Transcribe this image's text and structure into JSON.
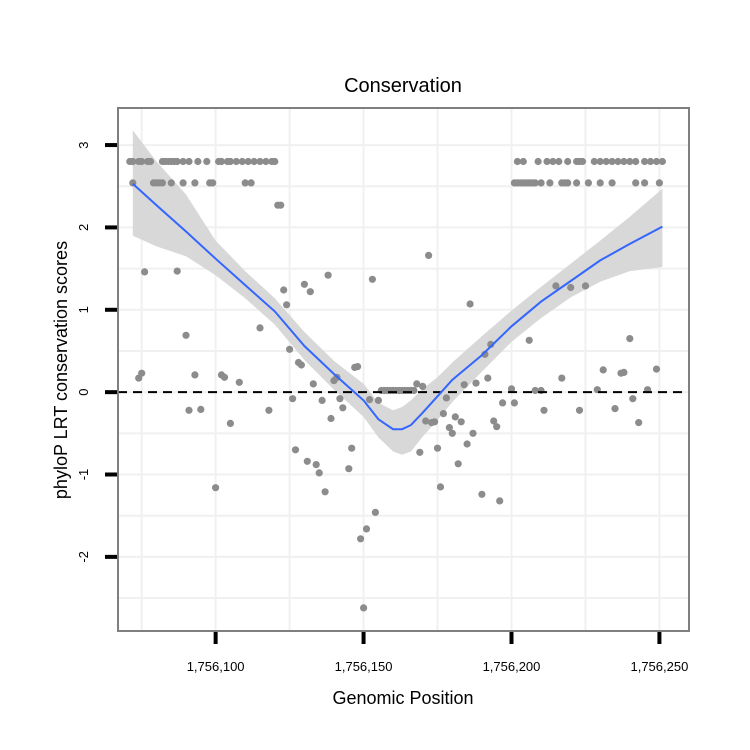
{
  "chart_data": {
    "type": "scatter",
    "title": "Conservation",
    "xlabel": "Genomic Position",
    "ylabel": "phyloP LRT conservation scores",
    "xlim": [
      1756067,
      1756260
    ],
    "ylim": [
      -2.9,
      3.45
    ],
    "x_ticks": [
      1756100,
      1756150,
      1756200,
      1756250
    ],
    "x_tick_labels": [
      "1,756,100",
      "1,756,150",
      "1,756,200",
      "1,756,250"
    ],
    "y_ticks": [
      -2,
      -1,
      0,
      1,
      2,
      3
    ],
    "y_tick_labels": [
      "-2",
      "-1",
      "0",
      "1",
      "2",
      "3"
    ],
    "reference_line": {
      "y": 0,
      "style": "dashed"
    },
    "colors": {
      "points": "#8c8c8c",
      "smooth": "#3366ff",
      "band": "#d4d4d4",
      "panel_border": "#7f7f7f",
      "grid": "#f0f0f0",
      "reference": "#000000"
    },
    "series": [
      {
        "name": "scores",
        "points": [
          [
            1756071,
            2.8
          ],
          [
            1756072,
            2.8
          ],
          [
            1756074,
            2.8
          ],
          [
            1756075,
            2.8
          ],
          [
            1756077,
            2.8
          ],
          [
            1756078,
            2.8
          ],
          [
            1756082,
            2.8
          ],
          [
            1756083,
            2.8
          ],
          [
            1756084,
            2.8
          ],
          [
            1756085,
            2.8
          ],
          [
            1756086,
            2.8
          ],
          [
            1756087,
            2.8
          ],
          [
            1756089,
            2.8
          ],
          [
            1756091,
            2.8
          ],
          [
            1756094,
            2.8
          ],
          [
            1756097,
            2.8
          ],
          [
            1756101,
            2.8
          ],
          [
            1756102,
            2.8
          ],
          [
            1756104,
            2.8
          ],
          [
            1756105,
            2.8
          ],
          [
            1756107,
            2.8
          ],
          [
            1756109,
            2.8
          ],
          [
            1756111,
            2.8
          ],
          [
            1756113,
            2.8
          ],
          [
            1756115,
            2.8
          ],
          [
            1756117,
            2.8
          ],
          [
            1756119,
            2.8
          ],
          [
            1756120,
            2.8
          ],
          [
            1756072,
            2.54
          ],
          [
            1756079,
            2.54
          ],
          [
            1756080,
            2.54
          ],
          [
            1756081,
            2.54
          ],
          [
            1756082,
            2.54
          ],
          [
            1756085,
            2.54
          ],
          [
            1756089,
            2.54
          ],
          [
            1756093,
            2.54
          ],
          [
            1756098,
            2.54
          ],
          [
            1756099,
            2.54
          ],
          [
            1756110,
            2.54
          ],
          [
            1756112,
            2.54
          ],
          [
            1756121,
            2.27
          ],
          [
            1756122,
            2.27
          ],
          [
            1756201,
            2.54
          ],
          [
            1756202,
            2.54
          ],
          [
            1756203,
            2.54
          ],
          [
            1756204,
            2.54
          ],
          [
            1756205,
            2.54
          ],
          [
            1756206,
            2.54
          ],
          [
            1756207,
            2.54
          ],
          [
            1756208,
            2.54
          ],
          [
            1756210,
            2.54
          ],
          [
            1756213,
            2.54
          ],
          [
            1756217,
            2.54
          ],
          [
            1756218,
            2.54
          ],
          [
            1756219,
            2.54
          ],
          [
            1756222,
            2.54
          ],
          [
            1756226,
            2.54
          ],
          [
            1756230,
            2.54
          ],
          [
            1756234,
            2.54
          ],
          [
            1756242,
            2.54
          ],
          [
            1756245,
            2.54
          ],
          [
            1756250,
            2.54
          ],
          [
            1756202,
            2.8
          ],
          [
            1756204,
            2.8
          ],
          [
            1756209,
            2.8
          ],
          [
            1756212,
            2.8
          ],
          [
            1756214,
            2.8
          ],
          [
            1756216,
            2.8
          ],
          [
            1756219,
            2.8
          ],
          [
            1756222,
            2.8
          ],
          [
            1756223,
            2.8
          ],
          [
            1756224,
            2.8
          ],
          [
            1756228,
            2.8
          ],
          [
            1756230,
            2.8
          ],
          [
            1756232,
            2.8
          ],
          [
            1756234,
            2.8
          ],
          [
            1756236,
            2.8
          ],
          [
            1756238,
            2.8
          ],
          [
            1756240,
            2.8
          ],
          [
            1756242,
            2.8
          ],
          [
            1756245,
            2.8
          ],
          [
            1756247,
            2.8
          ],
          [
            1756249,
            2.8
          ],
          [
            1756251,
            2.8
          ],
          [
            1756075,
            0.23
          ],
          [
            1756074,
            0.17
          ],
          [
            1756076,
            1.46
          ],
          [
            1756087,
            1.47
          ],
          [
            1756090,
            0.69
          ],
          [
            1756091,
            -0.22
          ],
          [
            1756093,
            0.21
          ],
          [
            1756095,
            -0.21
          ],
          [
            1756100,
            -1.16
          ],
          [
            1756102,
            0.21
          ],
          [
            1756103,
            0.18
          ],
          [
            1756105,
            -0.38
          ],
          [
            1756108,
            0.12
          ],
          [
            1756115,
            0.78
          ],
          [
            1756118,
            -0.22
          ],
          [
            1756123,
            1.24
          ],
          [
            1756124,
            1.06
          ],
          [
            1756125,
            0.52
          ],
          [
            1756126,
            -0.08
          ],
          [
            1756127,
            -0.7
          ],
          [
            1756128,
            0.36
          ],
          [
            1756129,
            0.33
          ],
          [
            1756130,
            1.31
          ],
          [
            1756131,
            -0.84
          ],
          [
            1756132,
            1.22
          ],
          [
            1756133,
            0.1
          ],
          [
            1756134,
            -0.88
          ],
          [
            1756135,
            -0.98
          ],
          [
            1756136,
            -0.1
          ],
          [
            1756137,
            -1.21
          ],
          [
            1756138,
            1.42
          ],
          [
            1756139,
            -0.32
          ],
          [
            1756140,
            0.14
          ],
          [
            1756141,
            0.18
          ],
          [
            1756142,
            -0.08
          ],
          [
            1756143,
            -0.19
          ],
          [
            1756145,
            -0.93
          ],
          [
            1756146,
            -0.68
          ],
          [
            1756147,
            0.3
          ],
          [
            1756148,
            0.31
          ],
          [
            1756149,
            -1.78
          ],
          [
            1756150,
            -2.62
          ],
          [
            1756151,
            -1.66
          ],
          [
            1756152,
            -0.09
          ],
          [
            1756153,
            1.37
          ],
          [
            1756154,
            -1.46
          ],
          [
            1756155,
            -0.1
          ],
          [
            1756156,
            0.02
          ],
          [
            1756157,
            0.02
          ],
          [
            1756158,
            0.02
          ],
          [
            1756159,
            0.02
          ],
          [
            1756160,
            0.02
          ],
          [
            1756161,
            0.02
          ],
          [
            1756162,
            0.02
          ],
          [
            1756163,
            0.02
          ],
          [
            1756164,
            0.02
          ],
          [
            1756165,
            0.02
          ],
          [
            1756166,
            0.02
          ],
          [
            1756167,
            0.02
          ],
          [
            1756168,
            0.1
          ],
          [
            1756169,
            -0.73
          ],
          [
            1756170,
            0.07
          ],
          [
            1756171,
            -0.35
          ],
          [
            1756172,
            1.66
          ],
          [
            1756173,
            -0.37
          ],
          [
            1756174,
            -0.36
          ],
          [
            1756175,
            -0.68
          ],
          [
            1756176,
            -1.15
          ],
          [
            1756177,
            -0.26
          ],
          [
            1756178,
            -0.07
          ],
          [
            1756179,
            -0.43
          ],
          [
            1756180,
            -0.5
          ],
          [
            1756181,
            -0.3
          ],
          [
            1756182,
            -0.87
          ],
          [
            1756183,
            -0.36
          ],
          [
            1756184,
            0.09
          ],
          [
            1756185,
            -0.63
          ],
          [
            1756186,
            1.07
          ],
          [
            1756187,
            -0.5
          ],
          [
            1756188,
            0.11
          ],
          [
            1756190,
            -1.24
          ],
          [
            1756191,
            0.46
          ],
          [
            1756192,
            0.17
          ],
          [
            1756193,
            0.58
          ],
          [
            1756194,
            -0.35
          ],
          [
            1756195,
            -0.42
          ],
          [
            1756196,
            -1.32
          ],
          [
            1756197,
            -0.13
          ],
          [
            1756200,
            0.04
          ],
          [
            1756201,
            -0.13
          ],
          [
            1756206,
            0.63
          ],
          [
            1756208,
            0.02
          ],
          [
            1756210,
            0.02
          ],
          [
            1756211,
            -0.22
          ],
          [
            1756215,
            1.29
          ],
          [
            1756217,
            0.17
          ],
          [
            1756220,
            1.27
          ],
          [
            1756223,
            -0.22
          ],
          [
            1756225,
            1.29
          ],
          [
            1756229,
            0.03
          ],
          [
            1756231,
            0.27
          ],
          [
            1756235,
            -0.2
          ],
          [
            1756237,
            0.23
          ],
          [
            1756238,
            0.24
          ],
          [
            1756240,
            0.65
          ],
          [
            1756241,
            -0.08
          ],
          [
            1756243,
            -0.37
          ],
          [
            1756246,
            0.03
          ],
          [
            1756249,
            0.28
          ]
        ]
      }
    ],
    "smooth": {
      "x": [
        1756072,
        1756080,
        1756090,
        1756100,
        1756110,
        1756120,
        1756130,
        1756140,
        1756150,
        1756155,
        1756160,
        1756163,
        1756166,
        1756170,
        1756175,
        1756180,
        1756190,
        1756200,
        1756210,
        1756220,
        1756230,
        1756240,
        1756251
      ],
      "y": [
        2.53,
        2.27,
        1.95,
        1.62,
        1.3,
        0.98,
        0.56,
        0.22,
        -0.1,
        -0.33,
        -0.45,
        -0.45,
        -0.4,
        -0.25,
        -0.05,
        0.15,
        0.45,
        0.8,
        1.1,
        1.35,
        1.6,
        1.8,
        2.01
      ],
      "lower": [
        1.9,
        1.77,
        1.65,
        1.42,
        1.14,
        0.82,
        0.39,
        0.03,
        -0.3,
        -0.55,
        -0.72,
        -0.76,
        -0.72,
        -0.54,
        -0.34,
        -0.12,
        0.25,
        0.61,
        0.9,
        1.15,
        1.34,
        1.47,
        1.52
      ],
      "upper": [
        3.18,
        2.8,
        2.4,
        1.84,
        1.47,
        1.14,
        0.73,
        0.38,
        0.1,
        -0.13,
        -0.22,
        -0.18,
        -0.1,
        0.04,
        0.18,
        0.36,
        0.68,
        0.99,
        1.28,
        1.56,
        1.84,
        2.13,
        2.47
      ]
    }
  }
}
